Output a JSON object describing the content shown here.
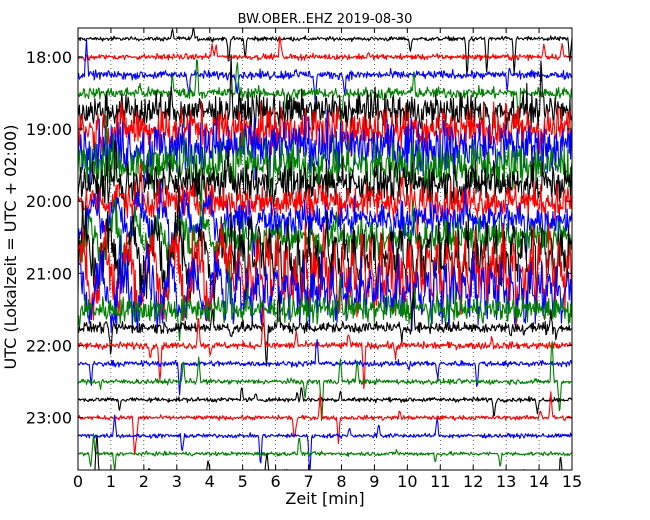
{
  "chart_data": {
    "type": "line",
    "title": "BW.OBER..EHZ 2019-08-30",
    "xlabel": "Zeit  [min]",
    "ylabel": "UTC (Lokalzeit = UTC + 02:00)",
    "xlim": [
      0,
      15
    ],
    "x_ticks": [
      0,
      1,
      2,
      3,
      4,
      5,
      6,
      7,
      8,
      9,
      10,
      11,
      12,
      13,
      14,
      15
    ],
    "x_tick_labels": [
      "0",
      "1",
      "2",
      "3",
      "4",
      "5",
      "6",
      "7",
      "8",
      "9",
      "10",
      "11",
      "12",
      "13",
      "14",
      "15"
    ],
    "y_tick_labels": [
      "18:00",
      "19:00",
      "20:00",
      "21:00",
      "22:00",
      "23:00"
    ],
    "traces_per_hour": 4,
    "trace_start": "17:45",
    "trace_end": "23:45",
    "grid": "dotted vertical at each minute",
    "legend": "none",
    "colors": [
      "#000000",
      "#ff0000",
      "#0000ff",
      "#008000"
    ]
  }
}
